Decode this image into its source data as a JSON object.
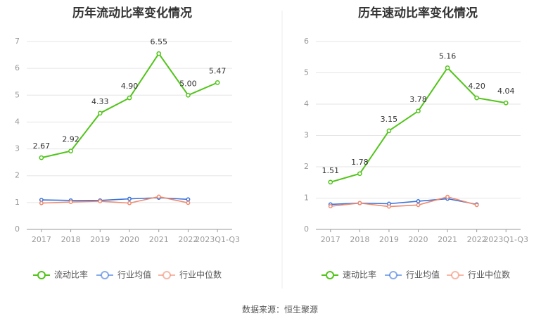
{
  "colors": {
    "primary": "#52c41a",
    "industry_avg": "#3a74dc",
    "industry_median": "#f08a6e",
    "grid": "#e5e5e5",
    "axis": "#999999"
  },
  "footer": {
    "source": "数据来源：恒生聚源"
  },
  "chart_data": [
    {
      "type": "line",
      "title": "历年流动比率变化情况",
      "categories": [
        "2017",
        "2018",
        "2019",
        "2020",
        "2021",
        "2022",
        "2023Q1-Q3"
      ],
      "ylim": [
        0,
        7
      ],
      "yticks": [
        "0",
        "1",
        "2",
        "3",
        "4",
        "5",
        "6",
        "7"
      ],
      "series": [
        {
          "name": "流动比率",
          "values": [
            2.67,
            2.92,
            4.33,
            4.9,
            6.55,
            5.0,
            5.47
          ],
          "labels": [
            "2.67",
            "2.92",
            "4.33",
            "4.90",
            "6.55",
            "5.00",
            "5.47"
          ]
        },
        {
          "name": "行业均值",
          "values": [
            1.1,
            1.08,
            1.08,
            1.14,
            1.18,
            1.12,
            null
          ]
        },
        {
          "name": "行业中位数",
          "values": [
            0.98,
            1.02,
            1.05,
            0.98,
            1.22,
            0.99,
            null
          ]
        }
      ]
    },
    {
      "type": "line",
      "title": "历年速动比率变化情况",
      "categories": [
        "2017",
        "2018",
        "2019",
        "2020",
        "2021",
        "2022",
        "2023Q1-Q3"
      ],
      "ylim": [
        0,
        6
      ],
      "yticks": [
        "0",
        "1",
        "2",
        "3",
        "4",
        "5",
        "6"
      ],
      "series": [
        {
          "name": "速动比率",
          "values": [
            1.51,
            1.78,
            3.15,
            3.78,
            5.16,
            4.2,
            4.04
          ],
          "labels": [
            "1.51",
            "1.78",
            "3.15",
            "3.78",
            "5.16",
            "4.20",
            "4.04"
          ]
        },
        {
          "name": "行业均值",
          "values": [
            0.8,
            0.84,
            0.82,
            0.9,
            0.98,
            0.8,
            null
          ]
        },
        {
          "name": "行业中位数",
          "values": [
            0.74,
            0.84,
            0.73,
            0.78,
            1.04,
            0.78,
            null
          ]
        }
      ]
    }
  ]
}
